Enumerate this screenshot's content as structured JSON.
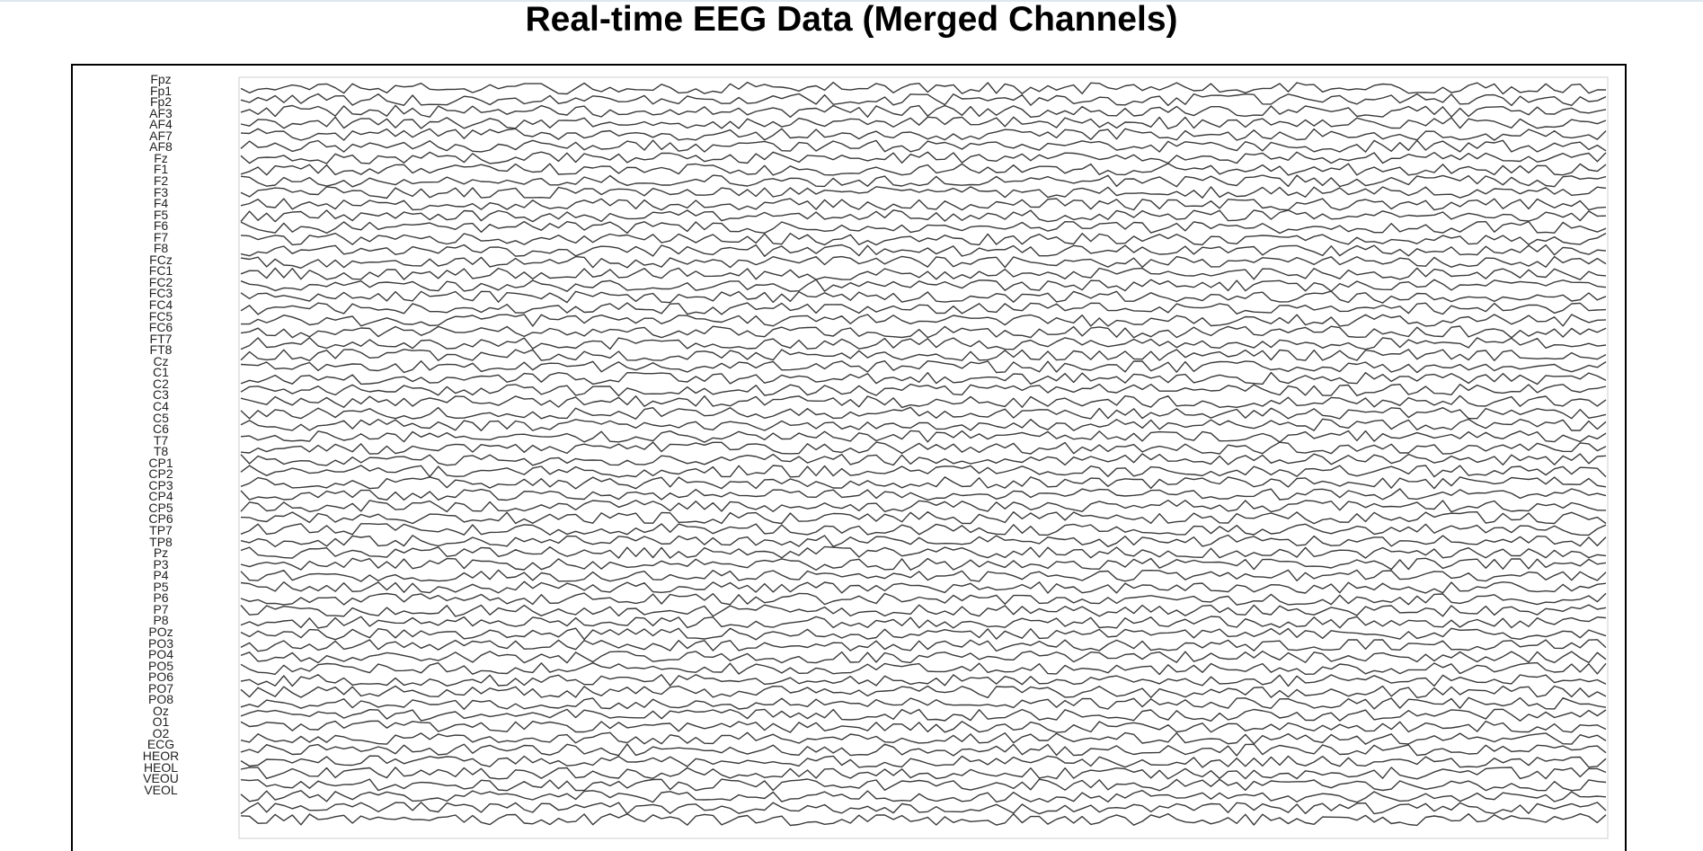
{
  "title": "Real-time EEG Data (Merged Channels)",
  "chart_data": {
    "type": "line",
    "title": "Real-time EEG Data (Merged Channels)",
    "xlabel": "",
    "ylabel": "",
    "grid": false,
    "legend": "none",
    "line_color": "#3a3a3a",
    "samples_per_channel": 160,
    "channels": [
      "Fpz",
      "Fp1",
      "Fp2",
      "AF3",
      "AF4",
      "AF7",
      "AF8",
      "Fz",
      "F1",
      "F2",
      "F3",
      "F4",
      "F5",
      "F6",
      "F7",
      "F8",
      "FCz",
      "FC1",
      "FC2",
      "FC3",
      "FC4",
      "FC5",
      "FC6",
      "FT7",
      "FT8",
      "Cz",
      "C1",
      "C2",
      "C3",
      "C4",
      "C5",
      "C6",
      "T7",
      "T8",
      "CP1",
      "CP2",
      "CP3",
      "CP4",
      "CP5",
      "CP6",
      "TP7",
      "TP8",
      "Pz",
      "P3",
      "P4",
      "P5",
      "P6",
      "P7",
      "P8",
      "POz",
      "PO3",
      "PO4",
      "PO5",
      "PO6",
      "PO7",
      "PO8",
      "Oz",
      "O1",
      "O2",
      "ECG",
      "HEOR",
      "HEOL",
      "VEOU",
      "VEOL"
    ]
  }
}
